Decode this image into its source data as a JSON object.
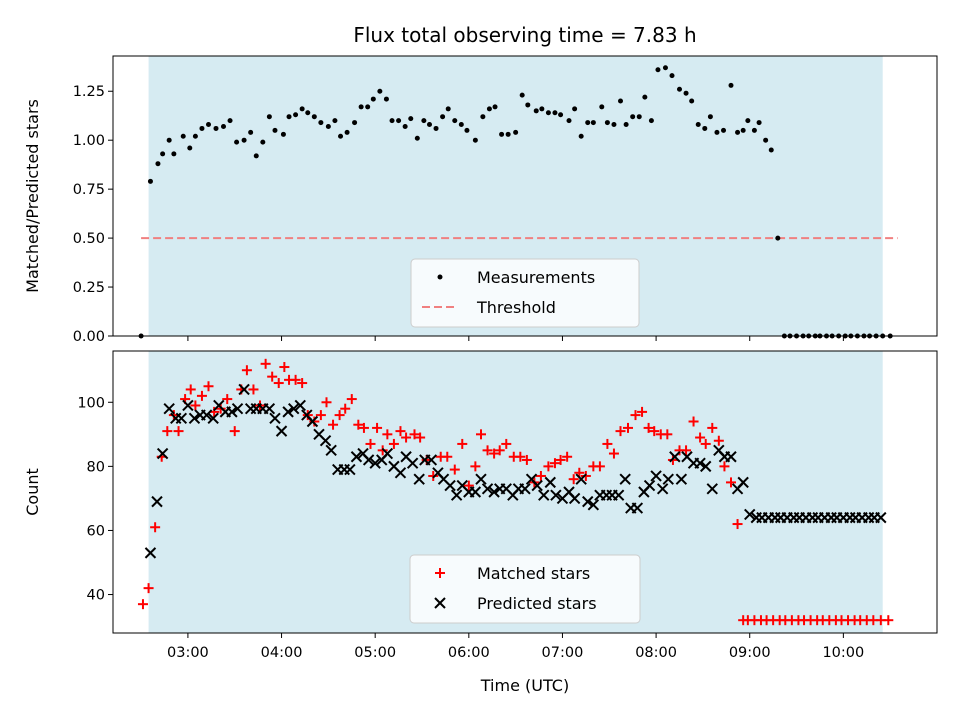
{
  "title": "Flux total observing time = 7.83 h",
  "colors": {
    "shade": "#add8e6",
    "shade_alpha": 0.5,
    "measurement": "#000000",
    "threshold": "#f08080",
    "matched": "#ff0000",
    "predicted": "#000000"
  },
  "chart_data": [
    {
      "type": "scatter",
      "xlabel": "",
      "ylabel": "Matched/Predicted stars",
      "xlim": [
        2.2,
        11.0
      ],
      "ylim": [
        0.0,
        1.43
      ],
      "yticks": [
        0.0,
        0.25,
        0.5,
        0.75,
        1.0,
        1.25
      ],
      "ytick_labels": [
        "0.00",
        "0.25",
        "0.50",
        "0.75",
        "1.00",
        "1.25"
      ],
      "shaded_span": [
        2.58,
        10.42
      ],
      "legend": {
        "placement": "lower-center",
        "entries": [
          "Measurements",
          "Threshold"
        ]
      },
      "threshold": {
        "name": "Threshold",
        "value": 0.5,
        "x_range": [
          2.5,
          10.58
        ]
      },
      "series": [
        {
          "name": "Measurements",
          "marker": "dot",
          "x": [
            2.5,
            2.6,
            2.68,
            2.73,
            2.8,
            2.85,
            2.95,
            3.02,
            3.08,
            3.15,
            3.22,
            3.3,
            3.38,
            3.45,
            3.52,
            3.6,
            3.67,
            3.73,
            3.8,
            3.87,
            3.93,
            4.02,
            4.08,
            4.15,
            4.22,
            4.28,
            4.35,
            4.42,
            4.5,
            4.57,
            4.63,
            4.7,
            4.78,
            4.85,
            4.92,
            4.98,
            5.05,
            5.12,
            5.18,
            5.25,
            5.32,
            5.38,
            5.45,
            5.52,
            5.58,
            5.65,
            5.72,
            5.78,
            5.85,
            5.92,
            5.98,
            6.07,
            6.15,
            6.22,
            6.28,
            6.35,
            6.42,
            6.5,
            6.57,
            6.63,
            6.72,
            6.78,
            6.85,
            6.92,
            6.98,
            7.07,
            7.13,
            7.2,
            7.27,
            7.33,
            7.42,
            7.48,
            7.55,
            7.62,
            7.68,
            7.75,
            7.82,
            7.88,
            7.95,
            8.02,
            8.1,
            8.17,
            8.25,
            8.32,
            8.38,
            8.45,
            8.52,
            8.58,
            8.65,
            8.72,
            8.8,
            8.87,
            8.93,
            8.98,
            9.05,
            9.1,
            9.17,
            9.23,
            9.3,
            9.37,
            9.43,
            9.5,
            9.57,
            9.63,
            9.7,
            9.75,
            9.82,
            9.88,
            9.95,
            10.02,
            10.08,
            10.15,
            10.22,
            10.28,
            10.35,
            10.42,
            10.5
          ],
          "y": [
            0.0,
            0.79,
            0.88,
            0.93,
            1.0,
            0.93,
            1.02,
            0.96,
            1.02,
            1.06,
            1.08,
            1.06,
            1.07,
            1.1,
            0.99,
            1.0,
            1.04,
            0.92,
            0.99,
            1.12,
            1.05,
            1.03,
            1.12,
            1.13,
            1.16,
            1.14,
            1.12,
            1.09,
            1.07,
            1.1,
            1.02,
            1.04,
            1.09,
            1.17,
            1.17,
            1.21,
            1.25,
            1.21,
            1.1,
            1.1,
            1.07,
            1.11,
            1.01,
            1.1,
            1.08,
            1.06,
            1.12,
            1.16,
            1.1,
            1.08,
            1.05,
            1.0,
            1.12,
            1.16,
            1.17,
            1.03,
            1.03,
            1.04,
            1.23,
            1.18,
            1.15,
            1.16,
            1.14,
            1.14,
            1.13,
            1.1,
            1.16,
            1.02,
            1.09,
            1.09,
            1.17,
            1.09,
            1.08,
            1.2,
            1.08,
            1.12,
            1.12,
            1.22,
            1.1,
            1.36,
            1.37,
            1.33,
            1.26,
            1.24,
            1.2,
            1.08,
            1.06,
            1.12,
            1.04,
            1.05,
            1.28,
            1.04,
            1.05,
            1.1,
            1.05,
            1.09,
            1.0,
            0.95,
            0.5,
            0.0,
            0.0,
            0.0,
            0.0,
            0.0,
            0.0,
            0.0,
            0.0,
            0.0,
            0.0,
            0.0,
            0.0,
            0.0,
            0.0,
            0.0,
            0.0,
            0.0,
            0.0
          ]
        }
      ]
    },
    {
      "type": "scatter",
      "xlabel": "Time (UTC)",
      "ylabel": "Count",
      "xlim": [
        2.2,
        11.0
      ],
      "ylim": [
        28,
        116
      ],
      "yticks": [
        40,
        60,
        80,
        100
      ],
      "ytick_labels": [
        "40",
        "60",
        "80",
        "100"
      ],
      "xticks": [
        3,
        4,
        5,
        6,
        7,
        8,
        9,
        10
      ],
      "xtick_labels": [
        "03:00",
        "04:00",
        "05:00",
        "06:00",
        "07:00",
        "08:00",
        "09:00",
        "10:00"
      ],
      "shaded_span": [
        2.58,
        10.42
      ],
      "legend": {
        "placement": "lower-center",
        "entries": [
          "Matched stars",
          "Predicted stars"
        ]
      },
      "series": [
        {
          "name": "Matched stars",
          "marker": "plus",
          "x": [
            2.52,
            2.58,
            2.65,
            2.72,
            2.78,
            2.85,
            2.9,
            2.97,
            3.03,
            3.08,
            3.15,
            3.22,
            3.28,
            3.35,
            3.42,
            3.5,
            3.57,
            3.63,
            3.7,
            3.77,
            3.83,
            3.9,
            3.97,
            4.03,
            4.08,
            4.15,
            4.22,
            4.28,
            4.35,
            4.42,
            4.48,
            4.55,
            4.62,
            4.68,
            4.75,
            4.82,
            4.88,
            4.95,
            5.02,
            5.08,
            5.13,
            5.2,
            5.27,
            5.33,
            5.42,
            5.48,
            5.55,
            5.62,
            5.7,
            5.77,
            5.85,
            5.93,
            6.0,
            6.07,
            6.13,
            6.2,
            6.27,
            6.33,
            6.4,
            6.48,
            6.55,
            6.62,
            6.7,
            6.77,
            6.85,
            6.92,
            6.98,
            7.05,
            7.12,
            7.18,
            7.25,
            7.33,
            7.4,
            7.48,
            7.55,
            7.62,
            7.7,
            7.78,
            7.85,
            7.92,
            7.98,
            8.05,
            8.12,
            8.18,
            8.25,
            8.32,
            8.4,
            8.47,
            8.53,
            8.6,
            8.67,
            8.73,
            8.8,
            8.87,
            8.93,
            8.98,
            9.05,
            9.12,
            9.18,
            9.25,
            9.32,
            9.38,
            9.45,
            9.52,
            9.58,
            9.65,
            9.72,
            9.78,
            9.85,
            9.92,
            9.98,
            10.05,
            10.12,
            10.18,
            10.25,
            10.32,
            10.4,
            10.48
          ],
          "y": [
            37,
            42,
            61,
            83,
            91,
            96,
            91,
            101,
            104,
            99,
            102,
            105,
            97,
            98,
            101,
            91,
            104,
            110,
            104,
            99,
            112,
            108,
            106,
            111,
            107,
            107,
            106,
            96,
            94,
            96,
            100,
            93,
            96,
            98,
            101,
            93,
            92,
            87,
            92,
            85,
            90,
            87,
            91,
            89,
            90,
            89,
            82,
            77,
            83,
            83,
            79,
            87,
            74,
            80,
            90,
            85,
            84,
            85,
            87,
            83,
            83,
            82,
            75,
            77,
            80,
            81,
            82,
            83,
            76,
            78,
            77,
            80,
            80,
            87,
            84,
            91,
            92,
            96,
            97,
            92,
            91,
            90,
            90,
            82,
            85,
            85,
            94,
            89,
            87,
            92,
            88,
            80,
            75,
            62,
            32,
            32,
            32,
            32,
            32,
            32,
            32,
            32,
            32,
            32,
            32,
            32,
            32,
            32,
            32,
            32,
            32,
            32,
            32,
            32,
            32,
            32,
            32,
            32
          ]
        },
        {
          "name": "Predicted stars",
          "marker": "x",
          "x": [
            2.6,
            2.67,
            2.73,
            2.8,
            2.87,
            2.93,
            3.0,
            3.07,
            3.13,
            3.2,
            3.27,
            3.33,
            3.4,
            3.47,
            3.53,
            3.6,
            3.67,
            3.73,
            3.8,
            3.87,
            3.93,
            4.0,
            4.07,
            4.13,
            4.2,
            4.27,
            4.33,
            4.4,
            4.47,
            4.53,
            4.6,
            4.67,
            4.73,
            4.8,
            4.87,
            4.93,
            5.0,
            5.07,
            5.13,
            5.2,
            5.27,
            5.33,
            5.4,
            5.47,
            5.53,
            5.6,
            5.67,
            5.73,
            5.8,
            5.87,
            5.93,
            6.0,
            6.07,
            6.13,
            6.2,
            6.27,
            6.33,
            6.4,
            6.47,
            6.53,
            6.6,
            6.67,
            6.73,
            6.8,
            6.87,
            6.93,
            7.0,
            7.07,
            7.13,
            7.2,
            7.27,
            7.33,
            7.4,
            7.47,
            7.53,
            7.6,
            7.67,
            7.73,
            7.8,
            7.87,
            7.93,
            8.0,
            8.07,
            8.13,
            8.2,
            8.27,
            8.33,
            8.4,
            8.47,
            8.53,
            8.6,
            8.67,
            8.73,
            8.8,
            8.87,
            8.93,
            9.0,
            9.07,
            9.13,
            9.2,
            9.27,
            9.33,
            9.4,
            9.47,
            9.53,
            9.6,
            9.67,
            9.73,
            9.8,
            9.87,
            9.93,
            10.0,
            10.07,
            10.13,
            10.2,
            10.27,
            10.33,
            10.4
          ],
          "y": [
            53,
            69,
            84,
            98,
            95,
            95,
            99,
            95,
            96,
            96,
            95,
            99,
            97,
            97,
            98,
            104,
            98,
            98,
            98,
            98,
            95,
            91,
            97,
            98,
            99,
            96,
            94,
            90,
            88,
            85,
            79,
            79,
            79,
            83,
            84,
            82,
            81,
            82,
            84,
            80,
            78,
            83,
            81,
            76,
            82,
            82,
            78,
            76,
            74,
            71,
            74,
            72,
            72,
            76,
            73,
            72,
            73,
            73,
            71,
            73,
            73,
            76,
            74,
            71,
            75,
            71,
            70,
            72,
            70,
            76,
            69,
            68,
            71,
            71,
            71,
            71,
            76,
            67,
            67,
            72,
            74,
            77,
            73,
            76,
            83,
            76,
            83,
            81,
            81,
            80,
            73,
            85,
            83,
            83,
            73,
            75,
            65,
            64,
            64,
            64,
            64,
            64,
            64,
            64,
            64,
            64,
            64,
            64,
            64,
            64,
            64,
            64,
            64,
            64,
            64,
            64,
            64,
            64
          ]
        }
      ]
    }
  ]
}
